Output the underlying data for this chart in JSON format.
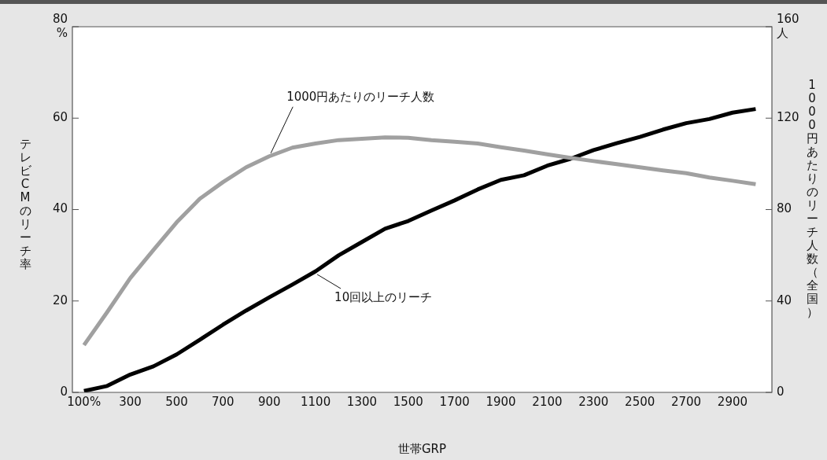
{
  "chart_data": {
    "type": "line",
    "xlabel": "世帯GRP",
    "ylabel": "テレビCMのリーチ率",
    "y2label": "1000円あたりのリーチ人数（全国）",
    "x": [
      100,
      200,
      300,
      400,
      500,
      600,
      700,
      800,
      900,
      1000,
      1100,
      1200,
      1300,
      1400,
      1500,
      1600,
      1700,
      1800,
      1900,
      2000,
      2100,
      2200,
      2300,
      2400,
      2500,
      2600,
      2700,
      2800,
      2900,
      3000
    ],
    "series": [
      {
        "name": "1000円あたりのリーチ人数",
        "color": "#a0a0a0",
        "axis": "y2",
        "values": [
          20.7,
          35.1,
          50,
          62.3,
          74.4,
          84.7,
          92,
          98.5,
          103.3,
          107.1,
          108.9,
          110.4,
          111,
          111.6,
          111.4,
          110.4,
          109.7,
          108.9,
          107.3,
          105.8,
          104.2,
          102.6,
          101.2,
          99.9,
          98.5,
          97.1,
          95.9,
          94,
          92.6,
          91.1
        ]
      },
      {
        "name": "10回以上のリーチ",
        "color": "#000000",
        "values": [
          0.3,
          1.4,
          3.9,
          5.7,
          8.3,
          11.5,
          14.8,
          17.9,
          20.8,
          23.6,
          26.5,
          30,
          32.9,
          35.8,
          37.5,
          39.8,
          42,
          44.4,
          46.5,
          47.5,
          49.6,
          51.1,
          53,
          54.5,
          55.9,
          57.5,
          58.9,
          59.8,
          61.2,
          62
        ]
      }
    ],
    "xlim": [
      50,
      3070
    ],
    "xticks": [
      {
        "value": 100,
        "label": "100%"
      },
      300,
      500,
      700,
      900,
      1100,
      1300,
      1500,
      1700,
      1900,
      2100,
      2300,
      2500,
      2700,
      2900
    ],
    "ylim": [
      0,
      80
    ],
    "yticks": [
      0,
      20,
      40,
      60,
      {
        "value": 80,
        "label": "80\n%"
      }
    ],
    "y2lim": [
      0,
      160
    ],
    "y2ticks": [
      0,
      40,
      80,
      120,
      {
        "value": 160,
        "label": "160\n人"
      }
    ],
    "grid": false,
    "legend": false,
    "marker": "none",
    "line_style": "solid"
  }
}
